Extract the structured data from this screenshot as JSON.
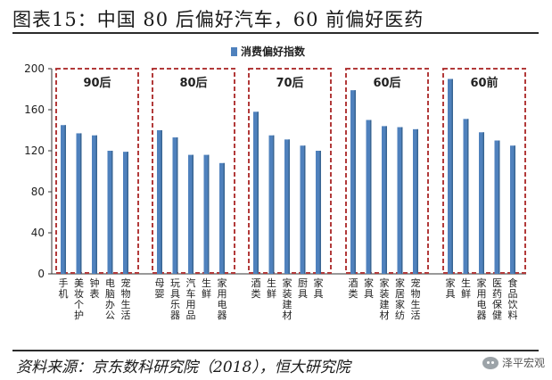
{
  "header": {
    "title": "图表15：中国 80 后偏好汽车，60 前偏好医药"
  },
  "footer": {
    "source": "资料来源：京东数科研究院（2018），恒大研究院"
  },
  "watermark": {
    "text": "泽平宏观",
    "icon": "wechat-icon"
  },
  "colors": {
    "bar": "#4f81bd",
    "bar_dark": "#3a6694",
    "box": "#b23a3a"
  },
  "chart_data": {
    "type": "bar",
    "title": "",
    "xlabel": "",
    "ylabel": "",
    "ylim": [
      0,
      200
    ],
    "yticks": [
      0,
      40,
      80,
      120,
      160,
      200
    ],
    "legend": {
      "label": "消费偏好指数",
      "position": "top"
    },
    "grid": false,
    "groups": [
      {
        "label": "90后",
        "categories": [
          "手机",
          "美妆个护",
          "钟表",
          "电脑办公",
          "宠物生活"
        ],
        "values": [
          145,
          137,
          135,
          120,
          119
        ]
      },
      {
        "label": "80后",
        "categories": [
          "母婴",
          "玩具乐器",
          "汽车用品",
          "生鲜",
          "家用电器"
        ],
        "values": [
          140,
          133,
          116,
          116,
          108
        ]
      },
      {
        "label": "70后",
        "categories": [
          "酒类",
          "生鲜",
          "家装建材",
          "厨具",
          "家具"
        ],
        "values": [
          158,
          135,
          131,
          125,
          120
        ]
      },
      {
        "label": "60后",
        "categories": [
          "酒类",
          "家具",
          "家装建材",
          "家居家纺",
          "宠物生活"
        ],
        "values": [
          179,
          150,
          144,
          143,
          141
        ]
      },
      {
        "label": "60前",
        "categories": [
          "家具",
          "生鲜",
          "家用电器",
          "医药保健",
          "食品饮料"
        ],
        "values": [
          190,
          151,
          138,
          130,
          125
        ]
      }
    ]
  }
}
